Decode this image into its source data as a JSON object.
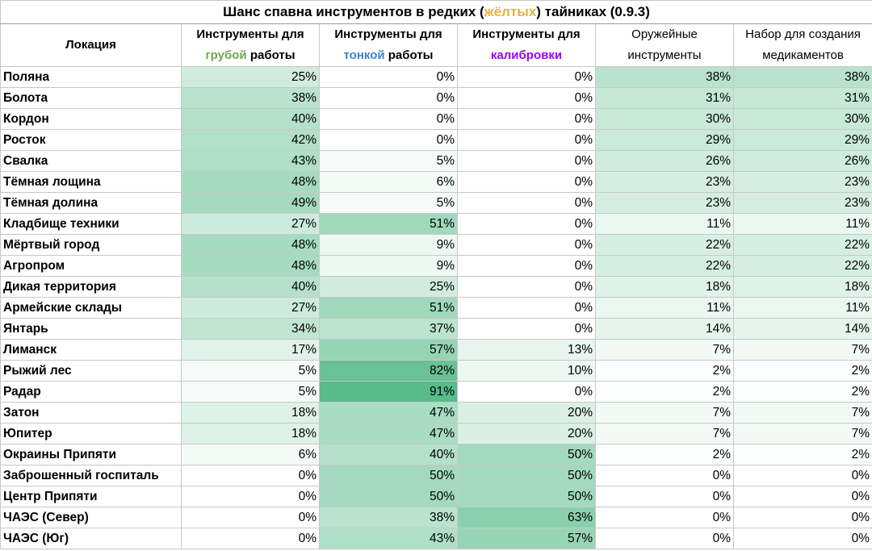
{
  "title": {
    "before": "Шанс спавна инструментов в редких (",
    "highlight": "жёлтых",
    "after": ") тайниках (0.9.3)",
    "highlight_color": "#e2b33a"
  },
  "headers": {
    "location": "Локация",
    "rough": {
      "line1": "Инструменты для",
      "accent": "грубой",
      "rest": " работы",
      "accent_color": "#6aa84f"
    },
    "fine": {
      "line1": "Инструменты для",
      "accent": "тонкой",
      "rest": " работы",
      "accent_color": "#3d85c6"
    },
    "calib": {
      "line1": "Инструменты для",
      "accent": "калибровки",
      "rest": "",
      "accent_color": "#9900ff"
    },
    "weapon": {
      "line1": "Оружейные",
      "line2": "инструменты"
    },
    "med": {
      "line1": "Набор для создания",
      "line2": "медикаментов"
    }
  },
  "colors": {
    "scale_low": "#ffffff",
    "scale_high": "#57bb8a"
  },
  "chart_data": {
    "type": "table",
    "title": "Шанс спавна инструментов в редких (жёлтых) тайниках (0.9.3)",
    "columns": [
      "Локация",
      "Инструменты для грубой работы",
      "Инструменты для тонкой работы",
      "Инструменты для калибровки",
      "Оружейные инструменты",
      "Набор для создания медикаментов"
    ],
    "rows": [
      {
        "location": "Поляна",
        "values": [
          "25%",
          "0%",
          "0%",
          "38%",
          "38%"
        ]
      },
      {
        "location": "Болота",
        "values": [
          "38%",
          "0%",
          "0%",
          "31%",
          "31%"
        ]
      },
      {
        "location": "Кордон",
        "values": [
          "40%",
          "0%",
          "0%",
          "30%",
          "30%"
        ]
      },
      {
        "location": "Росток",
        "values": [
          "42%",
          "0%",
          "0%",
          "29%",
          "29%"
        ]
      },
      {
        "location": "Свалка",
        "values": [
          "43%",
          "5%",
          "0%",
          "26%",
          "26%"
        ]
      },
      {
        "location": "Тёмная лощина",
        "values": [
          "48%",
          "6%",
          "0%",
          "23%",
          "23%"
        ]
      },
      {
        "location": "Тёмная долина",
        "values": [
          "49%",
          "5%",
          "0%",
          "23%",
          "23%"
        ]
      },
      {
        "location": "Кладбище техники",
        "values": [
          "27%",
          "51%",
          "0%",
          "11%",
          "11%"
        ]
      },
      {
        "location": "Мёртвый город",
        "values": [
          "48%",
          "9%",
          "0%",
          "22%",
          "22%"
        ]
      },
      {
        "location": "Агропром",
        "values": [
          "48%",
          "9%",
          "0%",
          "22%",
          "22%"
        ]
      },
      {
        "location": "Дикая территория",
        "values": [
          "40%",
          "25%",
          "0%",
          "18%",
          "18%"
        ]
      },
      {
        "location": "Армейские склады",
        "values": [
          "27%",
          "51%",
          "0%",
          "11%",
          "11%"
        ]
      },
      {
        "location": "Янтарь",
        "values": [
          "34%",
          "37%",
          "0%",
          "14%",
          "14%"
        ]
      },
      {
        "location": "Лиманск",
        "values": [
          "17%",
          "57%",
          "13%",
          "7%",
          "7%"
        ]
      },
      {
        "location": "Рыжий лес",
        "values": [
          "5%",
          "82%",
          "10%",
          "2%",
          "2%"
        ]
      },
      {
        "location": "Радар",
        "values": [
          "5%",
          "91%",
          "0%",
          "2%",
          "2%"
        ]
      },
      {
        "location": "Затон",
        "values": [
          "18%",
          "47%",
          "20%",
          "7%",
          "7%"
        ]
      },
      {
        "location": "Юпитер",
        "values": [
          "18%",
          "47%",
          "20%",
          "7%",
          "7%"
        ]
      },
      {
        "location": "Окраины Припяти",
        "values": [
          "6%",
          "40%",
          "50%",
          "2%",
          "2%"
        ]
      },
      {
        "location": "Заброшенный госпиталь",
        "values": [
          "0%",
          "50%",
          "50%",
          "0%",
          "0%"
        ]
      },
      {
        "location": "Центр Припяти",
        "values": [
          "0%",
          "50%",
          "50%",
          "0%",
          "0%"
        ]
      },
      {
        "location": "ЧАЭС (Север)",
        "values": [
          "0%",
          "38%",
          "63%",
          "0%",
          "0%"
        ]
      },
      {
        "location": "ЧАЭС (Юг)",
        "values": [
          "0%",
          "43%",
          "57%",
          "0%",
          "0%"
        ]
      }
    ]
  }
}
